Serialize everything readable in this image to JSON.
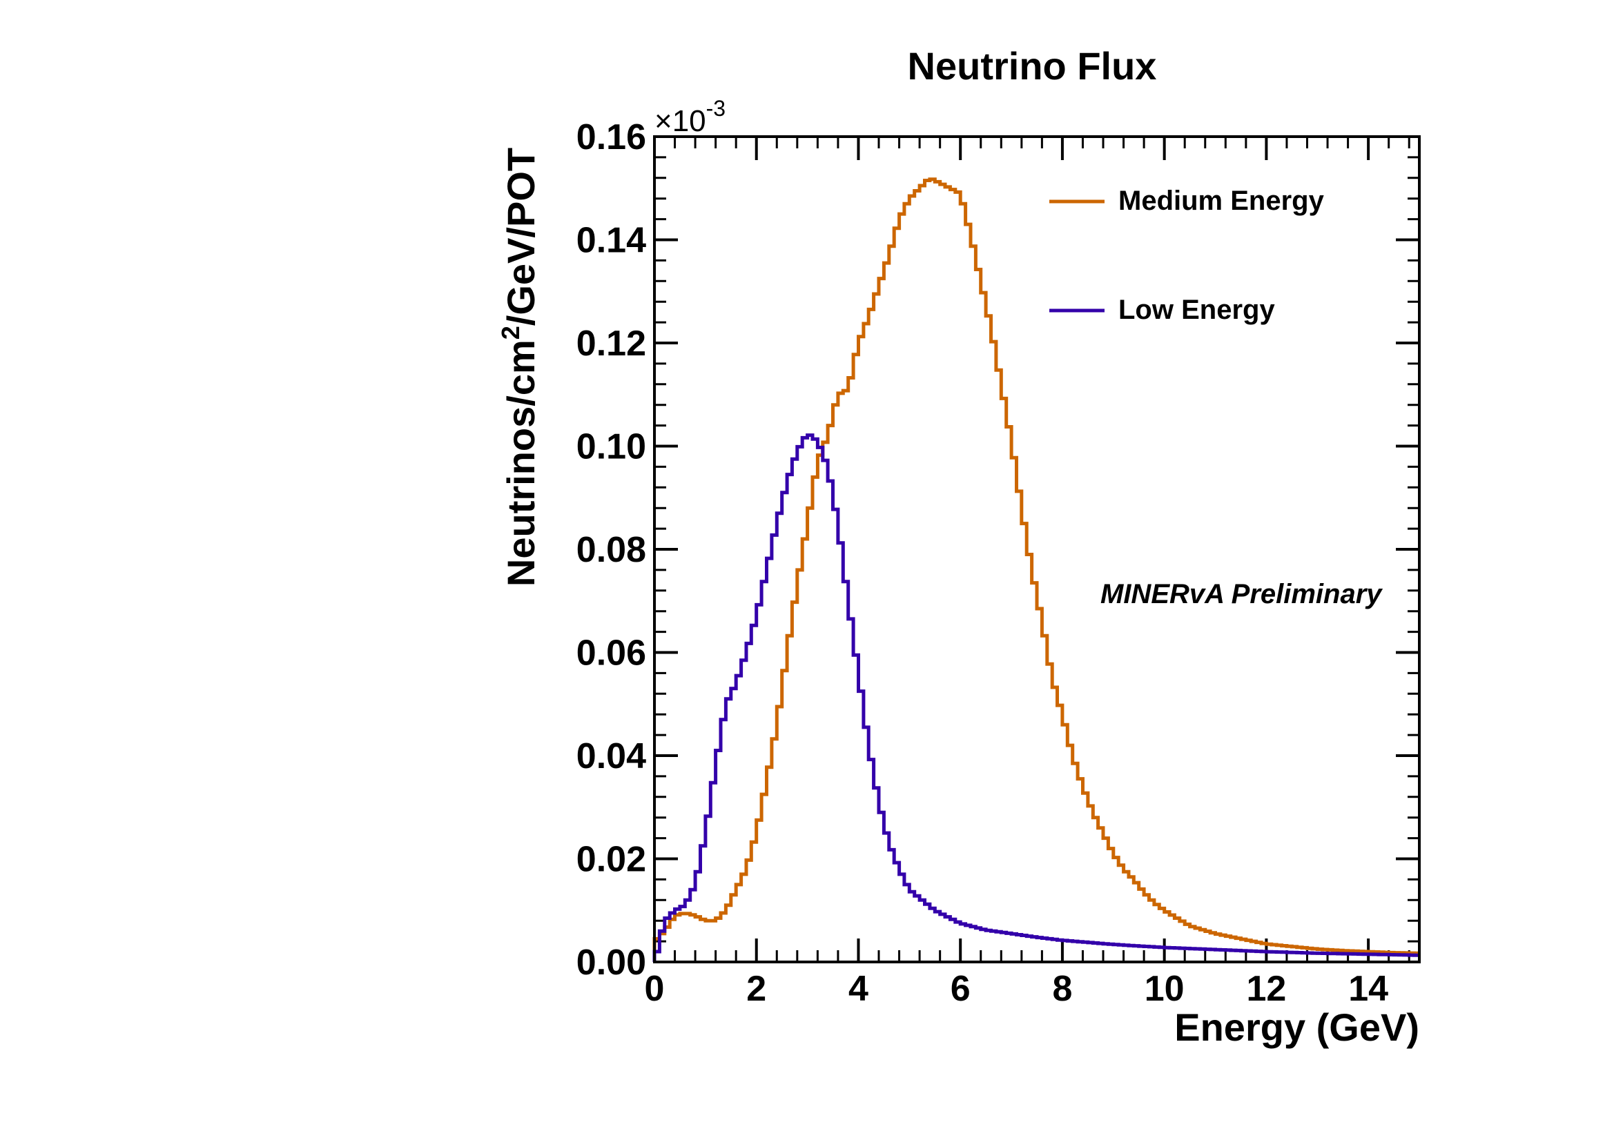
{
  "chart_data": {
    "type": "line",
    "title": "Neutrino Flux",
    "xlabel": "Energy (GeV)",
    "ylabel_main": "Neutrinos/cm",
    "ylabel_sup": "2",
    "ylabel_tail": "/GeV/POT",
    "exponent_prefix": "×10",
    "exponent_power": "-3",
    "annotation": "MINERvA Preliminary",
    "annotation_color": "#0000ee",
    "xlim": [
      0,
      15
    ],
    "ylim": [
      0,
      0.16
    ],
    "xticks": [
      0,
      2,
      4,
      6,
      8,
      10,
      12,
      14
    ],
    "xtick_labels": [
      "0",
      "2",
      "4",
      "6",
      "8",
      "10",
      "12",
      "14"
    ],
    "yticks": [
      0.0,
      0.02,
      0.04,
      0.06,
      0.08,
      0.1,
      0.12,
      0.14,
      0.16
    ],
    "ytick_labels": [
      "0.00",
      "0.02",
      "0.04",
      "0.06",
      "0.08",
      "0.10",
      "0.12",
      "0.14",
      "0.16"
    ],
    "legend_position": "top-right",
    "series": [
      {
        "name": "Medium Energy",
        "color": "#cc6600",
        "x": [
          0.0,
          0.2,
          0.4,
          0.6,
          0.8,
          1.0,
          1.2,
          1.4,
          1.6,
          1.8,
          2.0,
          2.2,
          2.4,
          2.6,
          2.8,
          3.0,
          3.2,
          3.4,
          3.6,
          3.8,
          4.0,
          4.2,
          4.4,
          4.6,
          4.8,
          5.0,
          5.2,
          5.4,
          5.6,
          5.8,
          6.0,
          6.2,
          6.4,
          6.6,
          6.8,
          7.0,
          7.2,
          7.4,
          7.6,
          7.8,
          8.0,
          8.2,
          8.4,
          8.6,
          8.8,
          9.0,
          9.2,
          9.4,
          9.6,
          9.8,
          10.0,
          10.5,
          11.0,
          11.5,
          12.0,
          12.5,
          13.0,
          13.5,
          14.0,
          14.5,
          15.0
        ],
        "values": [
          0.004,
          0.006,
          0.009,
          0.0095,
          0.009,
          0.008,
          0.008,
          0.01,
          0.014,
          0.018,
          0.025,
          0.035,
          0.046,
          0.06,
          0.073,
          0.085,
          0.097,
          0.102,
          0.11,
          0.111,
          0.12,
          0.125,
          0.131,
          0.137,
          0.144,
          0.148,
          0.15,
          0.152,
          0.151,
          0.15,
          0.149,
          0.141,
          0.132,
          0.123,
          0.112,
          0.101,
          0.088,
          0.076,
          0.066,
          0.055,
          0.048,
          0.04,
          0.034,
          0.029,
          0.025,
          0.021,
          0.018,
          0.016,
          0.0135,
          0.0115,
          0.01,
          0.007,
          0.0055,
          0.0045,
          0.0035,
          0.003,
          0.0025,
          0.0022,
          0.002,
          0.0018,
          0.0017
        ]
      },
      {
        "name": "Low Energy",
        "color": "#3300aa",
        "x": [
          0.0,
          0.1,
          0.2,
          0.4,
          0.6,
          0.8,
          1.0,
          1.2,
          1.4,
          1.6,
          1.8,
          2.0,
          2.2,
          2.4,
          2.6,
          2.8,
          3.0,
          3.2,
          3.4,
          3.6,
          3.8,
          4.0,
          4.2,
          4.4,
          4.6,
          4.8,
          5.0,
          5.5,
          6.0,
          6.5,
          7.0,
          7.5,
          8.0,
          8.5,
          9.0,
          9.5,
          10.0,
          11.0,
          12.0,
          13.0,
          14.0,
          15.0
        ],
        "values": [
          0.0,
          0.004,
          0.008,
          0.01,
          0.011,
          0.015,
          0.025,
          0.038,
          0.05,
          0.054,
          0.06,
          0.067,
          0.076,
          0.085,
          0.093,
          0.099,
          0.1025,
          0.101,
          0.096,
          0.085,
          0.07,
          0.056,
          0.042,
          0.031,
          0.023,
          0.018,
          0.014,
          0.01,
          0.0075,
          0.0062,
          0.0055,
          0.0048,
          0.0042,
          0.0038,
          0.0034,
          0.0031,
          0.0028,
          0.0024,
          0.002,
          0.0017,
          0.0015,
          0.0013
        ]
      }
    ]
  }
}
